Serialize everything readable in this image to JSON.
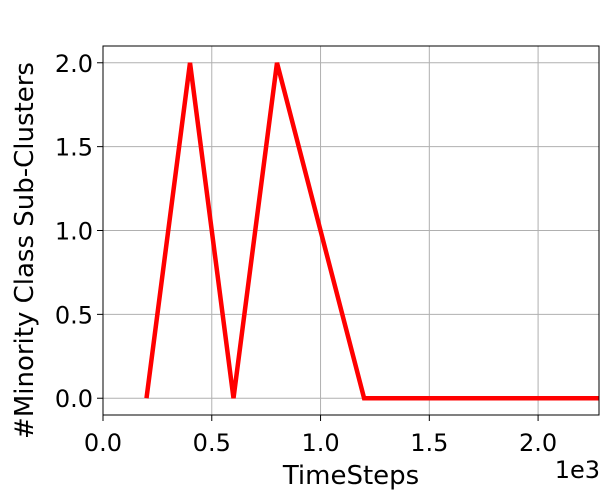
{
  "chart_data": {
    "type": "line",
    "title": "",
    "xlabel": "TimeSteps",
    "ylabel": "#Minority Class Sub-Clusters",
    "x_offset_label": "1e3",
    "xlim": [
      0,
      2.28
    ],
    "ylim": [
      -0.1,
      2.1
    ],
    "xticks": [
      0.0,
      0.5,
      1.0,
      1.5,
      2.0
    ],
    "xtick_labels": [
      "0.0",
      "0.5",
      "1.0",
      "1.5",
      "2.0"
    ],
    "yticks": [
      0.0,
      0.5,
      1.0,
      1.5,
      2.0
    ],
    "ytick_labels": [
      "0.0",
      "0.5",
      "1.0",
      "1.5",
      "2.0"
    ],
    "grid": true,
    "series": [
      {
        "color": "#ff0000",
        "x": [
          0.2,
          0.4,
          0.6,
          0.8,
          1.0,
          1.2,
          1.4,
          1.6,
          1.8,
          2.0,
          2.2,
          2.28
        ],
        "y": [
          0,
          2,
          0,
          2,
          1,
          0,
          0,
          0,
          0,
          0,
          0,
          0
        ]
      }
    ]
  }
}
